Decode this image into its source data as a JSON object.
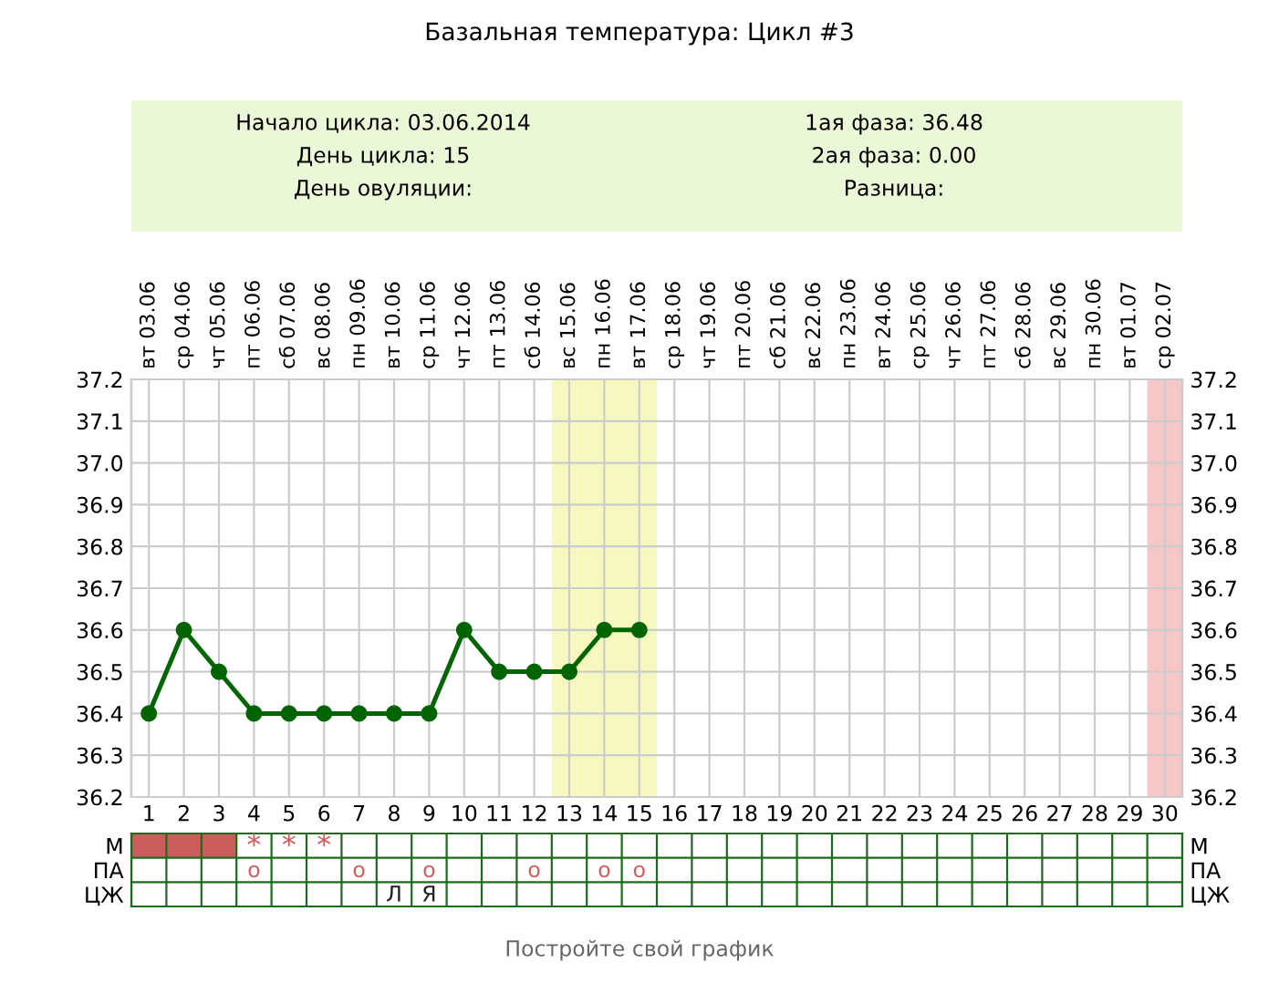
{
  "chart_data": [
    {
      "type": "line",
      "title": "Базальная температура: Цикл #3",
      "annotations": [
        "Начало цикла: 03.06.2014",
        "День цикла: 15",
        "День овуляции:",
        "1ая фаза: 36.48",
        "2ая фаза: 0.00",
        "Разница:"
      ],
      "x": [
        1,
        2,
        3,
        4,
        5,
        6,
        7,
        8,
        9,
        10,
        11,
        12,
        13,
        14,
        15
      ],
      "series": [
        {
          "color": "#006400",
          "values": [
            36.4,
            36.6,
            36.5,
            36.4,
            36.4,
            36.4,
            36.4,
            36.4,
            36.4,
            36.6,
            36.5,
            36.5,
            36.5,
            36.6,
            36.6
          ]
        }
      ],
      "xlim": [
        0.5,
        30.5
      ],
      "xticks": [
        1,
        2,
        3,
        4,
        5,
        6,
        7,
        8,
        9,
        10,
        11,
        12,
        13,
        14,
        15,
        16,
        17,
        18,
        19,
        20,
        21,
        22,
        23,
        24,
        25,
        26,
        27,
        28,
        29,
        30
      ],
      "x2lim": [
        "2014-06-02T12:00",
        "2014-07-02T12:00"
      ],
      "x2ticks": [
        {
          "value": "2014-06-03",
          "label": "вт 03.06"
        },
        {
          "value": "2014-06-04",
          "label": "ср 04.06"
        },
        {
          "value": "2014-06-05",
          "label": "чт 05.06"
        },
        {
          "value": "2014-06-06",
          "label": "пт 06.06"
        },
        {
          "value": "2014-06-07",
          "label": "сб 07.06"
        },
        {
          "value": "2014-06-08",
          "label": "вс 08.06"
        },
        {
          "value": "2014-06-09",
          "label": "пн 09.06"
        },
        {
          "value": "2014-06-10",
          "label": "вт 10.06"
        },
        {
          "value": "2014-06-11",
          "label": "ср 11.06"
        },
        {
          "value": "2014-06-12",
          "label": "чт 12.06"
        },
        {
          "value": "2014-06-13",
          "label": "пт 13.06"
        },
        {
          "value": "2014-06-14",
          "label": "сб 14.06"
        },
        {
          "value": "2014-06-15",
          "label": "вс 15.06"
        },
        {
          "value": "2014-06-16",
          "label": "пн 16.06"
        },
        {
          "value": "2014-06-17",
          "label": "вт 17.06"
        },
        {
          "value": "2014-06-18",
          "label": "ср 18.06"
        },
        {
          "value": "2014-06-19",
          "label": "чт 19.06"
        },
        {
          "value": "2014-06-20",
          "label": "пт 20.06"
        },
        {
          "value": "2014-06-21",
          "label": "сб 21.06"
        },
        {
          "value": "2014-06-22",
          "label": "вс 22.06"
        },
        {
          "value": "2014-06-23",
          "label": "пн 23.06"
        },
        {
          "value": "2014-06-24",
          "label": "вт 24.06"
        },
        {
          "value": "2014-06-25",
          "label": "ср 25.06"
        },
        {
          "value": "2014-06-26",
          "label": "чт 26.06"
        },
        {
          "value": "2014-06-27",
          "label": "пт 27.06"
        },
        {
          "value": "2014-06-28",
          "label": "сб 28.06"
        },
        {
          "value": "2014-06-29",
          "label": "вс 29.06"
        },
        {
          "value": "2014-06-30",
          "label": "пн 30.06"
        },
        {
          "value": "2014-07-01",
          "label": "вт 01.07"
        },
        {
          "value": "2014-07-02",
          "label": "ср 02.07"
        }
      ],
      "ylim": [
        36.2,
        37.2
      ],
      "yticks": [
        {
          "value": 36.2,
          "label": "36.2"
        },
        {
          "value": 36.3,
          "label": "36.3"
        },
        {
          "value": 36.4,
          "label": "36.4"
        },
        {
          "value": 36.5,
          "label": "36.5"
        },
        {
          "value": 36.6,
          "label": "36.6"
        },
        {
          "value": 36.7,
          "label": "36.7"
        },
        {
          "value": 36.8,
          "label": "36.8"
        },
        {
          "value": 36.9,
          "label": "36.9"
        },
        {
          "value": 37.0,
          "label": "37.0"
        },
        {
          "value": 37.1,
          "label": "37.1"
        },
        {
          "value": 37.2,
          "label": "37.2"
        }
      ],
      "y2lim": [
        36.2,
        37.2
      ],
      "y2ticks": [
        {
          "value": 36.2,
          "label": "36.2"
        },
        {
          "value": 36.3,
          "label": "36.3"
        },
        {
          "value": 36.4,
          "label": "36.4"
        },
        {
          "value": 36.5,
          "label": "36.5"
        },
        {
          "value": 36.6,
          "label": "36.6"
        },
        {
          "value": 36.7,
          "label": "36.7"
        },
        {
          "value": 36.8,
          "label": "36.8"
        },
        {
          "value": 36.9,
          "label": "36.9"
        },
        {
          "value": 37.0,
          "label": "37.0"
        },
        {
          "value": 37.1,
          "label": "37.1"
        },
        {
          "value": 37.2,
          "label": "37.2"
        }
      ],
      "bands": [
        {
          "axis": "x",
          "from": 12.5,
          "to": 15.5,
          "color": "#f7f7c0"
        },
        {
          "axis": "x",
          "from": 29.5,
          "to": 30.5,
          "color": "#f7c6c6"
        }
      ],
      "grid": true,
      "marker": "circle",
      "line_style": "solid"
    },
    {
      "type": "heatmap",
      "categories": [
        null,
        null,
        null,
        null,
        null,
        null,
        null,
        null,
        null,
        null,
        null,
        null,
        null,
        null,
        null,
        null,
        null,
        null,
        null,
        null,
        null,
        null,
        null,
        null,
        null,
        null,
        null,
        null,
        null,
        null
      ],
      "y_categories": [
        "М",
        "ПА",
        "ЦЖ"
      ],
      "y2_categories": [
        "М",
        "ПА",
        "ЦЖ"
      ],
      "cells": [
        [
          null,
          null,
          null,
          null,
          null,
          null,
          null,
          null,
          null,
          null,
          null,
          null,
          null,
          null,
          null,
          null,
          null,
          null,
          null,
          null,
          null,
          null,
          null,
          null,
          null,
          null,
          null,
          null,
          null,
          null
        ],
        [
          null,
          null,
          null,
          null,
          null,
          null,
          null,
          null,
          null,
          null,
          null,
          null,
          null,
          null,
          null,
          null,
          null,
          null,
          null,
          null,
          null,
          null,
          null,
          null,
          null,
          null,
          null,
          null,
          null,
          null
        ],
        [
          null,
          null,
          null,
          null,
          null,
          null,
          null,
          null,
          null,
          null,
          null,
          null,
          null,
          null,
          null,
          null,
          null,
          null,
          null,
          null,
          null,
          null,
          null,
          null,
          null,
          null,
          null,
          null,
          null,
          null
        ]
      ],
      "cell_labels": [
        [
          null,
          null,
          null,
          "*",
          "*",
          "*",
          null,
          null,
          null,
          null,
          null,
          null,
          null,
          null,
          null,
          null,
          null,
          null,
          null,
          null,
          null,
          null,
          null,
          null,
          null,
          null,
          null,
          null,
          null,
          null
        ],
        [
          null,
          null,
          null,
          "o",
          null,
          null,
          "o",
          null,
          "o",
          null,
          null,
          "o",
          null,
          "o",
          "o",
          null,
          null,
          null,
          null,
          null,
          null,
          null,
          null,
          null,
          null,
          null,
          null,
          null,
          null,
          null
        ],
        [
          null,
          null,
          null,
          null,
          null,
          null,
          null,
          "Л",
          "Я",
          null,
          null,
          null,
          null,
          null,
          null,
          null,
          null,
          null,
          null,
          null,
          null,
          null,
          null,
          null,
          null,
          null,
          null,
          null,
          null,
          null
        ]
      ],
      "annotations": [
        "Постройте свой график"
      ]
    }
  ]
}
